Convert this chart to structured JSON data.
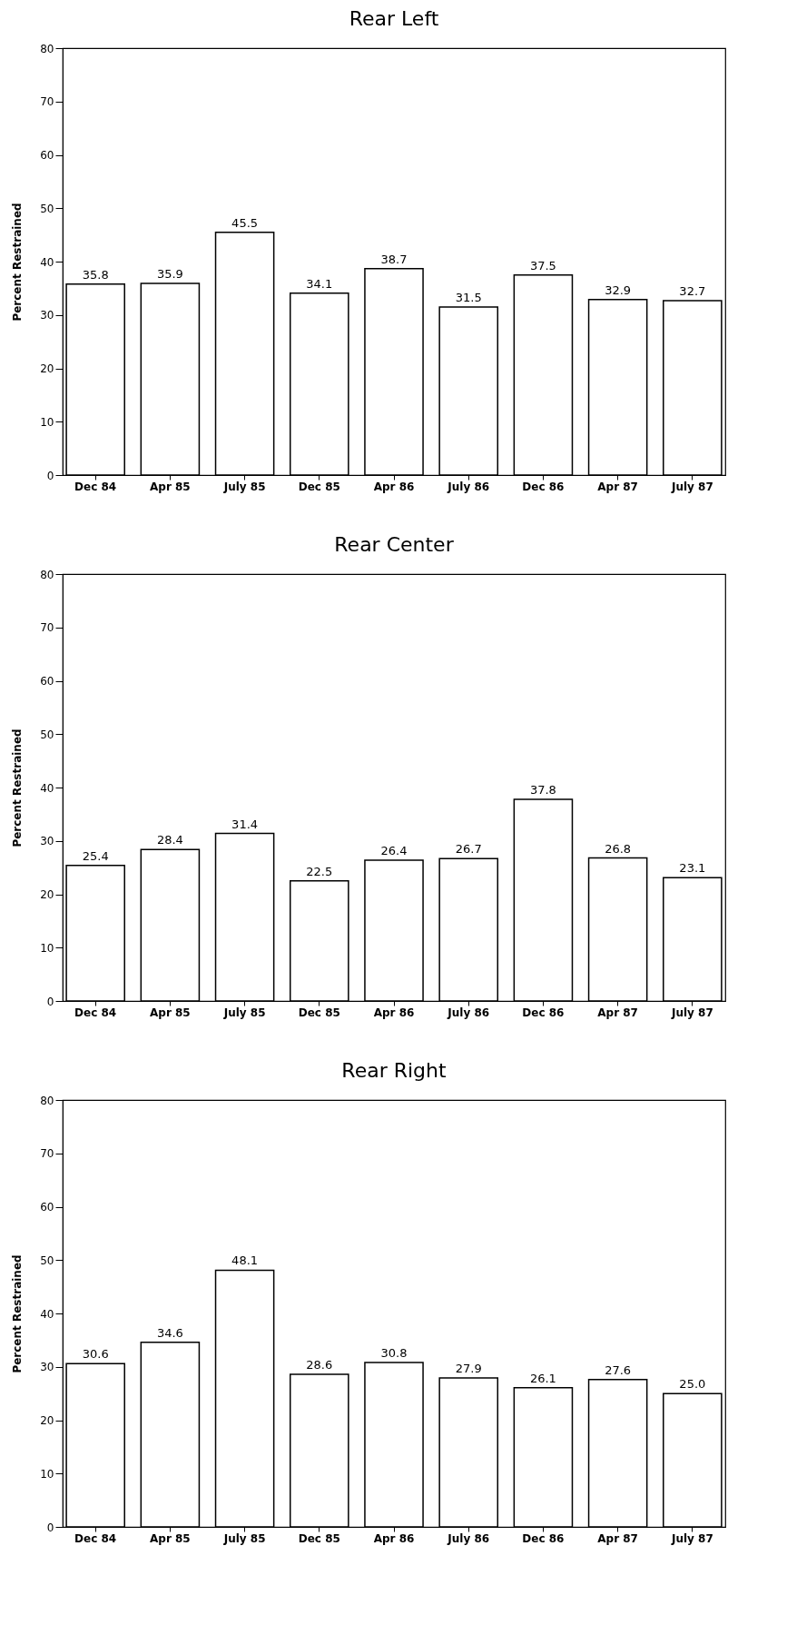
{
  "chart_data": [
    {
      "type": "bar",
      "title": "Rear Left",
      "ylabel": "Percent Restrained",
      "categories": [
        "Dec 84",
        "Apr 85",
        "July 85",
        "Dec 85",
        "Apr 86",
        "July 86",
        "Dec 86",
        "Apr 87",
        "July 87"
      ],
      "values": [
        35.8,
        35.9,
        45.5,
        34.1,
        38.7,
        31.5,
        37.5,
        32.9,
        32.7
      ],
      "color": "#ffffff",
      "ylim": [
        0,
        80
      ],
      "yticks": [
        0,
        10,
        20,
        30,
        40,
        50,
        60,
        70,
        80
      ],
      "data_labels": true
    },
    {
      "type": "bar",
      "title": "Rear Center",
      "ylabel": "Percent Restrained",
      "categories": [
        "Dec 84",
        "Apr 85",
        "July 85",
        "Dec 85",
        "Apr 86",
        "July 86",
        "Dec 86",
        "Apr 87",
        "July 87"
      ],
      "values": [
        25.4,
        28.4,
        31.4,
        22.5,
        26.4,
        26.7,
        37.8,
        26.8,
        23.1
      ],
      "color": "#ffffff",
      "ylim": [
        0,
        80
      ],
      "yticks": [
        0,
        10,
        20,
        30,
        40,
        50,
        60,
        70,
        80
      ],
      "data_labels": true
    },
    {
      "type": "bar",
      "title": "Rear Right",
      "ylabel": "Percent Restrained",
      "categories": [
        "Dec 84",
        "Apr 85",
        "July 85",
        "Dec 85",
        "Apr 86",
        "July 86",
        "Dec 86",
        "Apr 87",
        "July 87"
      ],
      "values": [
        30.6,
        34.6,
        48.1,
        28.6,
        30.8,
        27.9,
        26.1,
        27.6,
        25.0
      ],
      "value_labels": [
        "30.6",
        "34.6",
        "48.1",
        "28.6",
        "30.8",
        "27.9",
        "26.1",
        "27.6",
        "25.0"
      ],
      "color": "#ffffff",
      "ylim": [
        0,
        80
      ],
      "yticks": [
        0,
        10,
        20,
        30,
        40,
        50,
        60,
        70,
        80
      ]
    }
  ]
}
